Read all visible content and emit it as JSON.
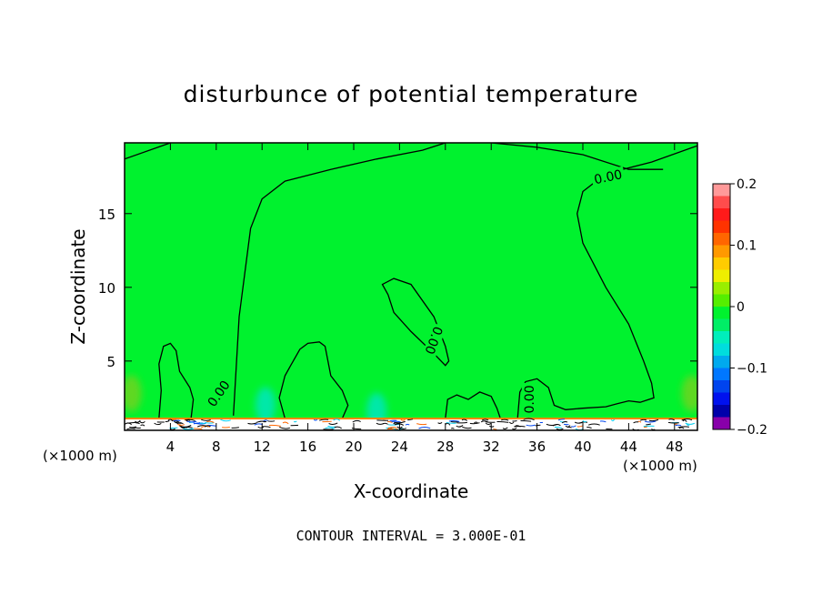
{
  "chart_data": {
    "type": "contour",
    "title": "disturbunce of potential temperature",
    "xlabel": "X-coordinate",
    "ylabel": "Z-coordinate",
    "x_unit": "(×1000 m)",
    "x_unit_right": "(×1000 m)",
    "xlim": [
      0,
      50
    ],
    "ylim": [
      0.3,
      19.8
    ],
    "x_ticks": [
      4,
      8,
      12,
      16,
      20,
      24,
      28,
      32,
      36,
      40,
      44,
      48
    ],
    "y_ticks": [
      5,
      10,
      15
    ],
    "contour_label": "0.00",
    "footnote": "CONTOUR INTERVAL = 3.000E-01",
    "background_color": "#00f22e",
    "colorbar": {
      "ticks": [
        0.2,
        0.1,
        0,
        -0.1,
        -0.2
      ],
      "tick_labels": [
        "0.2",
        "0.1",
        "0",
        "−0.1",
        "−0.2"
      ],
      "colors": [
        "#ff9999",
        "#ff4c4c",
        "#ff1a1a",
        "#ff3300",
        "#ff6600",
        "#ff9900",
        "#ffcc00",
        "#eeee00",
        "#99ee00",
        "#55ee00",
        "#00f22e",
        "#00ee66",
        "#00eebb",
        "#00dddd",
        "#00aaee",
        "#0077ff",
        "#0044ee",
        "#0011ee",
        "#0000aa",
        "#8800aa"
      ]
    },
    "zero_contours": [
      [
        [
          0,
          18.7
        ],
        [
          4,
          19.8
        ]
      ],
      [
        [
          9.5,
          1.3
        ],
        [
          10,
          8
        ],
        [
          11,
          14
        ],
        [
          12,
          16
        ],
        [
          14,
          17.2
        ],
        [
          18,
          18
        ],
        [
          22,
          18.7
        ],
        [
          26,
          19.3
        ],
        [
          28,
          19.8
        ]
      ],
      [
        [
          32,
          19.8
        ],
        [
          36,
          19.5
        ],
        [
          40,
          19
        ],
        [
          44,
          18
        ],
        [
          47,
          18
        ]
      ],
      [
        [
          50,
          19.6
        ],
        [
          46,
          18.5
        ],
        [
          42,
          17.7
        ],
        [
          40,
          16.5
        ],
        [
          39.5,
          15
        ],
        [
          40,
          13
        ],
        [
          42,
          10
        ],
        [
          44,
          7.5
        ],
        [
          45.3,
          5
        ],
        [
          46,
          3.5
        ],
        [
          46.2,
          2.5
        ],
        [
          45,
          2.2
        ],
        [
          44,
          2.3
        ],
        [
          43,
          2.1
        ],
        [
          42,
          1.9
        ],
        [
          40,
          1.8
        ],
        [
          38.5,
          1.7
        ],
        [
          37.5,
          2
        ],
        [
          37,
          3.2
        ],
        [
          36,
          3.8
        ],
        [
          35,
          3.6
        ],
        [
          34.5,
          2.9
        ],
        [
          34.3,
          1.1
        ]
      ],
      [
        [
          3,
          1.1
        ],
        [
          3.2,
          3
        ],
        [
          3,
          4.8
        ],
        [
          3.4,
          6
        ],
        [
          4,
          6.2
        ],
        [
          4.5,
          5.7
        ],
        [
          4.8,
          4.3
        ],
        [
          5.7,
          3.2
        ],
        [
          6,
          2.4
        ],
        [
          5.8,
          1.1
        ]
      ],
      [
        [
          14,
          1.1
        ],
        [
          13.5,
          2.5
        ],
        [
          14,
          4
        ],
        [
          14.5,
          4.7
        ],
        [
          15.3,
          5.8
        ],
        [
          16,
          6.2
        ],
        [
          17,
          6.3
        ],
        [
          17.5,
          6
        ],
        [
          18,
          4
        ],
        [
          19,
          3
        ],
        [
          19.5,
          2
        ],
        [
          19,
          1.1
        ]
      ],
      [
        [
          23,
          9.5
        ],
        [
          22.5,
          10.2
        ],
        [
          23.5,
          10.6
        ],
        [
          25,
          10.2
        ],
        [
          27,
          8
        ],
        [
          28,
          6
        ],
        [
          28.3,
          5
        ],
        [
          28,
          4.7
        ],
        [
          27,
          5.5
        ],
        [
          25,
          7
        ],
        [
          23.5,
          8.3
        ],
        [
          23,
          9.5
        ]
      ],
      [
        [
          28,
          1.1
        ],
        [
          28.2,
          2.4
        ],
        [
          29,
          2.7
        ],
        [
          30,
          2.4
        ],
        [
          31,
          2.9
        ],
        [
          32,
          2.6
        ],
        [
          32.5,
          1.8
        ],
        [
          32.8,
          1.1
        ]
      ]
    ],
    "zero_contour_labels": [
      {
        "x": 8.2,
        "y": 2.8,
        "angle": -55
      },
      {
        "x": 27,
        "y": 6.4,
        "angle": 110
      },
      {
        "x": 35.3,
        "y": 2.4,
        "angle": -90
      },
      {
        "x": 42.2,
        "y": 17.5,
        "angle": -12
      }
    ],
    "anomalies": [
      {
        "x": 12.3,
        "y": 2.0,
        "value": -0.04,
        "color": "#00e8a8"
      },
      {
        "x": 22.0,
        "y": 1.6,
        "value": -0.04,
        "color": "#00e8a8"
      },
      {
        "x": 0.6,
        "y": 2.8,
        "value": 0.03,
        "color": "#5ed820"
      },
      {
        "x": 49.5,
        "y": 2.8,
        "value": 0.03,
        "color": "#5ed820"
      }
    ],
    "terrain_top": 1.1
  }
}
